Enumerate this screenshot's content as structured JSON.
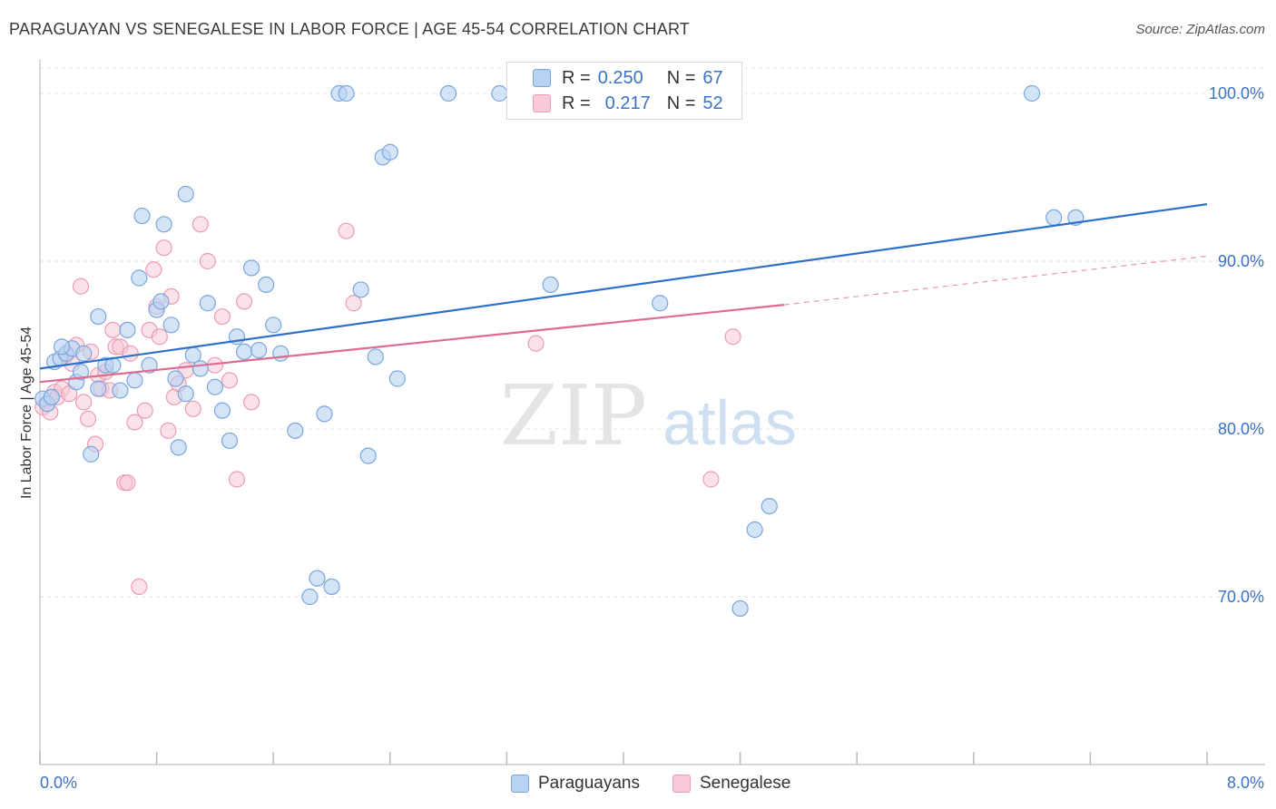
{
  "header": {
    "title": "PARAGUAYAN VS SENEGALESE IN LABOR FORCE | AGE 45-54 CORRELATION CHART",
    "source": "Source: ZipAtlas.com"
  },
  "legend": {
    "r_label": "R =",
    "n_label": "N =",
    "rows": [
      {
        "r": "0.250",
        "n": "67"
      },
      {
        "r": "0.217",
        "n": "52"
      }
    ]
  },
  "watermark": {
    "zip": "ZIP",
    "atlas": "atlas"
  },
  "colors": {
    "paraguayans_fill": "#b8d2f2",
    "paraguayans_stroke": "#7aa6de",
    "paraguayans_line": "#2f6fcc",
    "senegalese_fill": "#f8c9d6",
    "senegalese_stroke": "#eb9db4",
    "senegalese_line": "#de6b90",
    "tick_label": "#3a72c8"
  },
  "chart_data": {
    "type": "scatter",
    "title": "PARAGUAYAN VS SENEGALESE IN LABOR FORCE | AGE 45-54 CORRELATION CHART",
    "xlabel": "",
    "ylabel": "In Labor Force | Age 45-54",
    "xlim": [
      0,
      8
    ],
    "ylim": [
      60,
      102
    ],
    "x_tick_labels": [
      "0.0%",
      "8.0%"
    ],
    "y_ticks": [
      70,
      80,
      90,
      100
    ],
    "y_tick_labels": [
      "70.0%",
      "80.0%",
      "90.0%",
      "100.0%"
    ],
    "grid": true,
    "legend_position": "top-center",
    "series": [
      {
        "name": "Paraguayans",
        "r": 0.25,
        "n": 67,
        "trend": {
          "x": [
            0.0,
            8.0
          ],
          "y": [
            83.6,
            93.4
          ]
        },
        "x": [
          0.02,
          0.05,
          0.08,
          0.1,
          0.14,
          0.18,
          0.22,
          0.25,
          0.28,
          0.3,
          0.35,
          0.4,
          0.45,
          0.5,
          0.55,
          0.6,
          0.65,
          0.68,
          0.7,
          0.75,
          0.8,
          0.83,
          0.85,
          0.9,
          0.93,
          0.95,
          1.0,
          1.05,
          1.1,
          1.15,
          1.2,
          1.25,
          1.3,
          1.35,
          1.4,
          1.45,
          1.5,
          1.55,
          1.6,
          1.65,
          1.75,
          1.85,
          1.9,
          1.95,
          2.0,
          2.05,
          2.1,
          2.2,
          2.25,
          2.3,
          2.35,
          2.4,
          2.45,
          2.8,
          3.15,
          3.5,
          3.7,
          4.25,
          4.8,
          4.9,
          5.0,
          6.8,
          6.95,
          7.1,
          0.15,
          0.4,
          1.0
        ],
        "y": [
          81.8,
          81.5,
          81.9,
          84.0,
          84.2,
          84.5,
          84.8,
          82.8,
          83.4,
          84.5,
          78.5,
          82.4,
          83.8,
          83.8,
          82.3,
          85.9,
          82.9,
          89.0,
          92.7,
          83.8,
          87.1,
          87.6,
          92.2,
          86.2,
          83.0,
          78.9,
          82.1,
          84.4,
          83.6,
          87.5,
          82.5,
          81.1,
          79.3,
          85.5,
          84.6,
          89.6,
          84.7,
          88.6,
          86.2,
          84.5,
          79.9,
          70.0,
          71.1,
          80.9,
          70.6,
          100.0,
          100.0,
          88.3,
          78.4,
          84.3,
          96.2,
          96.5,
          83.0,
          100.0,
          100.0,
          88.6,
          100.0,
          87.5,
          69.3,
          74.0,
          75.4,
          100.0,
          92.6,
          92.6,
          84.9,
          86.7,
          94.0
        ]
      },
      {
        "name": "Senegalese",
        "r": 0.217,
        "n": 52,
        "trend": {
          "x": [
            0.0,
            5.1
          ],
          "y": [
            82.8,
            87.4
          ]
        },
        "trend_extension": {
          "x": [
            5.1,
            8.0
          ],
          "y": [
            87.4,
            90.3
          ]
        },
        "x": [
          0.02,
          0.05,
          0.07,
          0.1,
          0.12,
          0.15,
          0.18,
          0.2,
          0.22,
          0.25,
          0.28,
          0.3,
          0.33,
          0.35,
          0.38,
          0.4,
          0.42,
          0.45,
          0.48,
          0.5,
          0.52,
          0.55,
          0.58,
          0.6,
          0.62,
          0.65,
          0.68,
          0.72,
          0.75,
          0.78,
          0.8,
          0.82,
          0.85,
          0.88,
          0.9,
          0.92,
          0.95,
          1.0,
          1.05,
          1.1,
          1.15,
          1.2,
          1.25,
          1.3,
          1.35,
          1.4,
          1.45,
          2.1,
          2.15,
          3.4,
          4.6,
          4.75
        ],
        "y": [
          81.3,
          81.5,
          81.0,
          82.2,
          81.9,
          82.4,
          84.4,
          82.1,
          83.9,
          85.0,
          88.5,
          81.6,
          80.6,
          84.6,
          79.1,
          83.2,
          82.4,
          83.4,
          82.3,
          85.9,
          84.9,
          84.9,
          76.8,
          76.8,
          84.5,
          80.4,
          70.6,
          81.1,
          85.9,
          89.5,
          87.3,
          85.5,
          90.8,
          79.9,
          87.9,
          81.9,
          82.7,
          83.5,
          81.2,
          92.2,
          90.0,
          83.8,
          86.7,
          82.9,
          77.0,
          87.6,
          81.6,
          91.8,
          87.5,
          85.1,
          77.0,
          85.5
        ]
      }
    ]
  },
  "bottom_legend": [
    "Paraguayans",
    "Senegalese"
  ]
}
